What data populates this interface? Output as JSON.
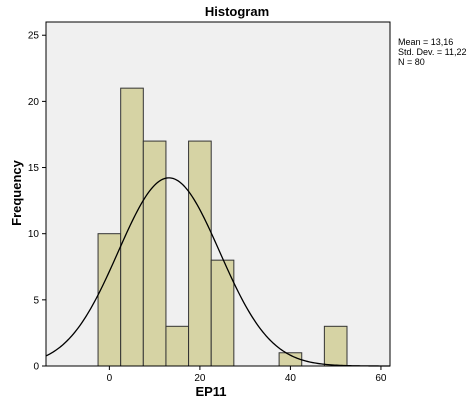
{
  "chart_data": {
    "type": "bar",
    "title": "Histogram",
    "xlabel": "EP11",
    "ylabel": "Frequency",
    "xlim": [
      -14,
      62
    ],
    "ylim": [
      0,
      26
    ],
    "x_ticks": [
      0,
      20,
      40,
      60
    ],
    "y_ticks": [
      0,
      5,
      10,
      15,
      20,
      25
    ],
    "bin_width": 5,
    "bins": [
      {
        "from": -2.5,
        "to": 2.5,
        "count": 10
      },
      {
        "from": 2.5,
        "to": 7.5,
        "count": 21
      },
      {
        "from": 7.5,
        "to": 12.5,
        "count": 17
      },
      {
        "from": 12.5,
        "to": 17.5,
        "count": 3
      },
      {
        "from": 17.5,
        "to": 22.5,
        "count": 17
      },
      {
        "from": 22.5,
        "to": 27.5,
        "count": 8
      },
      {
        "from": 27.5,
        "to": 32.5,
        "count": 0
      },
      {
        "from": 32.5,
        "to": 37.5,
        "count": 0
      },
      {
        "from": 37.5,
        "to": 42.5,
        "count": 1
      },
      {
        "from": 42.5,
        "to": 47.5,
        "count": 0
      },
      {
        "from": 47.5,
        "to": 52.5,
        "count": 3
      }
    ],
    "normal_curve": {
      "mean": 13.16,
      "std_dev": 11.22,
      "n": 80
    },
    "grid": false,
    "legend_position": "top-right",
    "colors": {
      "bar_fill": "#d6d3a4",
      "bar_stroke": "#333333",
      "plot_bg": "#f0f0f0",
      "curve": "#000000"
    }
  },
  "stats_box": {
    "mean_label": "Mean = 13,16",
    "std_label": "Std. Dev. = 11,22",
    "n_label": "N = 80"
  }
}
